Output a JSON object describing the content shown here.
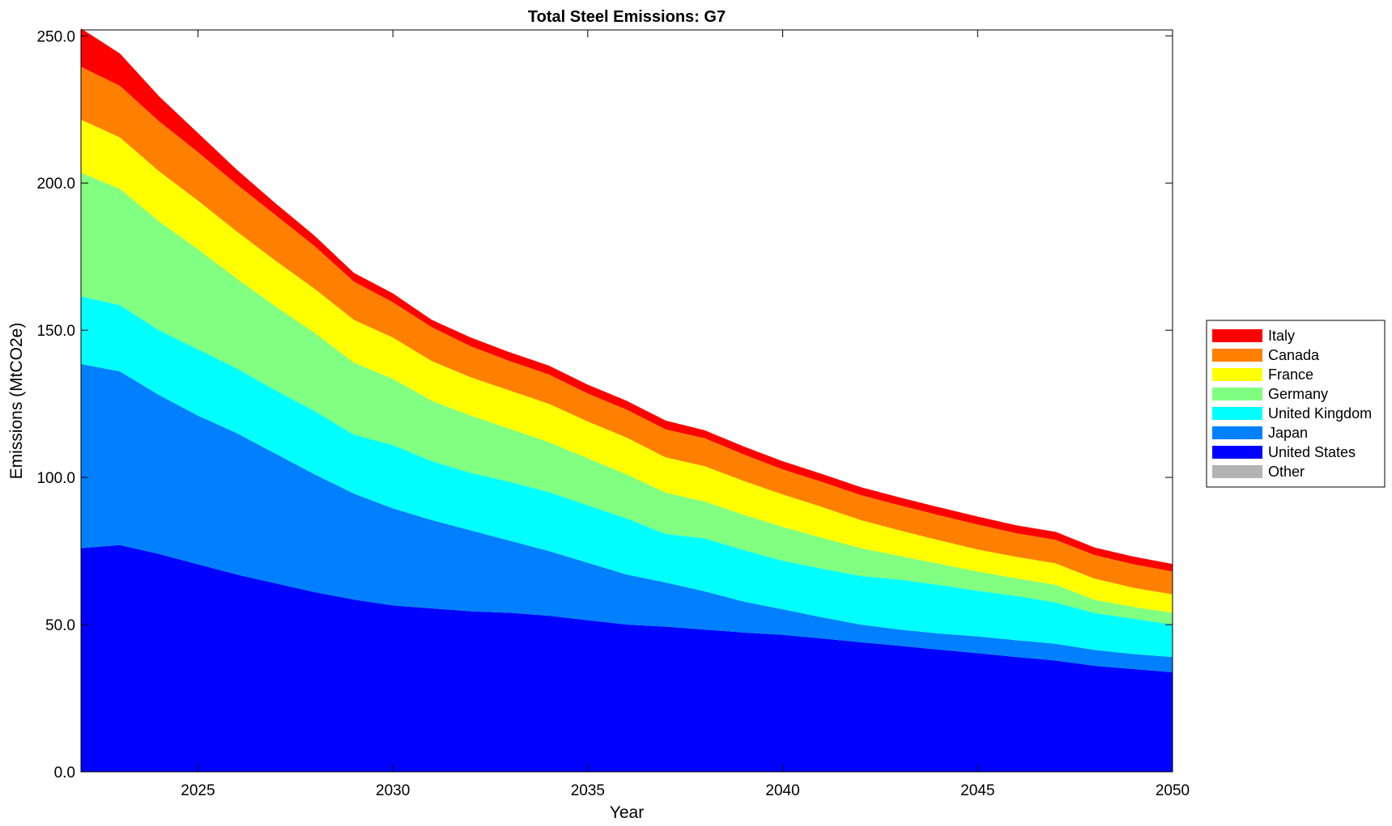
{
  "chart_data": {
    "type": "area",
    "title": "Total Steel Emissions: G7",
    "xlabel": "Year",
    "ylabel": "Emissions (MtCO2e)",
    "xlim": [
      2022,
      2050
    ],
    "ylim": [
      0,
      252
    ],
    "x_ticks": [
      2025,
      2030,
      2035,
      2040,
      2045,
      2050
    ],
    "y_ticks": [
      0,
      50,
      100,
      150,
      200,
      250
    ],
    "y_tick_labels": [
      "0.0",
      "50.0",
      "100.0",
      "150.0",
      "200.0",
      "250.0"
    ],
    "grid": false,
    "legend_position": "right",
    "x": [
      2022,
      2023,
      2024,
      2025,
      2026,
      2027,
      2028,
      2029,
      2030,
      2031,
      2032,
      2033,
      2034,
      2035,
      2036,
      2037,
      2038,
      2039,
      2040,
      2041,
      2042,
      2043,
      2044,
      2045,
      2046,
      2047,
      2048,
      2049,
      2050
    ],
    "series": [
      {
        "name": "United States",
        "color": "#0000ff",
        "values": [
          76,
          77,
          74,
          70.5,
          67,
          64,
          61,
          58.5,
          56.5,
          55.5,
          54.5,
          54,
          53,
          51.5,
          50,
          49.3,
          48.3,
          47.3,
          46.5,
          45.3,
          44,
          42.8,
          41.5,
          40.3,
          39,
          37.8,
          36,
          34.9,
          33.8
        ]
      },
      {
        "name": "Japan",
        "color": "#0080ff",
        "values": [
          62.5,
          59,
          54,
          50.5,
          48,
          44,
          40,
          36,
          33,
          30,
          27.5,
          24.5,
          22,
          19.5,
          17,
          15,
          13,
          10.5,
          8.7,
          7.2,
          6,
          5.5,
          5.5,
          5.7,
          5.7,
          5.7,
          5.4,
          5.1,
          5.2
        ]
      },
      {
        "name": "United Kingdom",
        "color": "#00ffff",
        "values": [
          23,
          22.5,
          22,
          22.5,
          22,
          21.5,
          21.5,
          20,
          21.5,
          20,
          19.5,
          20,
          20,
          19.5,
          19,
          16.5,
          18,
          17.5,
          16.5,
          16.5,
          16.5,
          17,
          16.5,
          15.5,
          15,
          14,
          12.5,
          12,
          11
        ]
      },
      {
        "name": "Germany",
        "color": "#80ff80",
        "values": [
          42,
          39.5,
          37,
          34,
          30.5,
          28.5,
          26.5,
          24.5,
          22.5,
          20.5,
          19.5,
          18,
          17,
          16,
          15,
          14,
          12.5,
          12,
          11.5,
          10.5,
          9.5,
          8,
          7.2,
          6.5,
          6,
          6,
          4.5,
          4,
          4
        ]
      },
      {
        "name": "France",
        "color": "#ffff00",
        "values": [
          18,
          17.5,
          17,
          16.5,
          16,
          15.5,
          15,
          14.5,
          14,
          13.5,
          13,
          13,
          13,
          12.5,
          12.5,
          12,
          12,
          11.5,
          11,
          10.5,
          9.5,
          8.7,
          8,
          7.5,
          7.3,
          7.3,
          7.2,
          6.5,
          6.3
        ]
      },
      {
        "name": "Canada",
        "color": "#ff8000",
        "values": [
          18,
          17.5,
          17,
          16.5,
          16,
          15.5,
          14.5,
          13,
          12,
          11.5,
          10.5,
          10,
          10,
          9.5,
          9.5,
          9.5,
          9.5,
          9,
          8.5,
          8.5,
          8.5,
          8.5,
          8.5,
          8.5,
          8,
          8,
          8,
          8,
          7.7
        ]
      },
      {
        "name": "Italy",
        "color": "#ff0000",
        "values": [
          13,
          11,
          8.5,
          6.5,
          5,
          4,
          3.5,
          3,
          3,
          2.5,
          3,
          3,
          3,
          3,
          3,
          3,
          2.7,
          2.7,
          2.8,
          2.7,
          2.7,
          2.7,
          2.7,
          2.7,
          2.7,
          2.7,
          2.6,
          2.6,
          2.6
        ]
      },
      {
        "name": "Other",
        "color": "#b3b3b3",
        "values": [
          0,
          0,
          0,
          0,
          0,
          0,
          0,
          0,
          0,
          0,
          0,
          0,
          0,
          0,
          0,
          0,
          0,
          0,
          0,
          0,
          0,
          0,
          0,
          0,
          0,
          0,
          0,
          0,
          0
        ]
      }
    ]
  }
}
